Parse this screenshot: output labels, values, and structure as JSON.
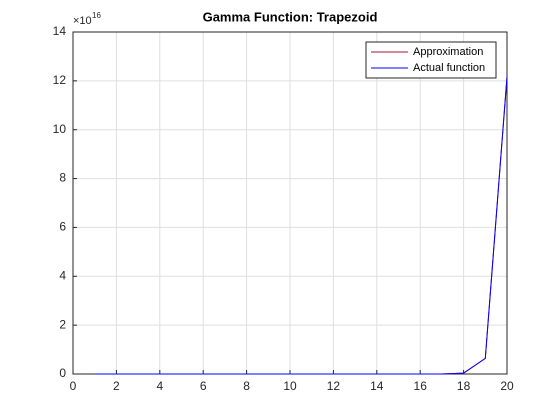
{
  "chart_data": {
    "type": "line",
    "title": "Gamma Function: Trapezoid",
    "y_multiplier": {
      "base": "×10",
      "exponent": "16"
    },
    "x": [
      1,
      2,
      3,
      4,
      5,
      6,
      7,
      8,
      9,
      10,
      11,
      12,
      13,
      14,
      15,
      16,
      17,
      18,
      19,
      20
    ],
    "series": [
      {
        "name": "Approximation",
        "color": "#a2142f",
        "values": [
          1e-16,
          1e-16,
          2e-16,
          6e-16,
          2.4e-15,
          1.2e-14,
          7.2e-14,
          5.04e-13,
          4.032e-12,
          3.6288e-11,
          3.6288e-10,
          3.99168e-09,
          4.790016e-08,
          6.2270208e-07,
          8.71782912e-06,
          0.0001307674368,
          0.0020922789888,
          0.0355687428096,
          0.6402373705728,
          12.1645100408832
        ]
      },
      {
        "name": "Actual function",
        "color": "#0000ff",
        "values": [
          1e-16,
          1e-16,
          2e-16,
          6e-16,
          2.4e-15,
          1.2e-14,
          7.2e-14,
          5.04e-13,
          4.032e-12,
          3.6288e-11,
          3.6288e-10,
          3.99168e-09,
          4.790016e-08,
          6.2270208e-07,
          8.71782912e-06,
          0.0001307674368,
          0.0020922789888,
          0.0355687428096,
          0.6402373705728,
          12.1645100408832
        ]
      }
    ],
    "xlim": [
      0,
      20
    ],
    "xticks": [
      0,
      2,
      4,
      6,
      8,
      10,
      12,
      14,
      16,
      18,
      20
    ],
    "ylim": [
      0,
      14
    ],
    "yticks": [
      0,
      2,
      4,
      6,
      8,
      10,
      12,
      14
    ],
    "grid": true,
    "legend": "northeast"
  }
}
